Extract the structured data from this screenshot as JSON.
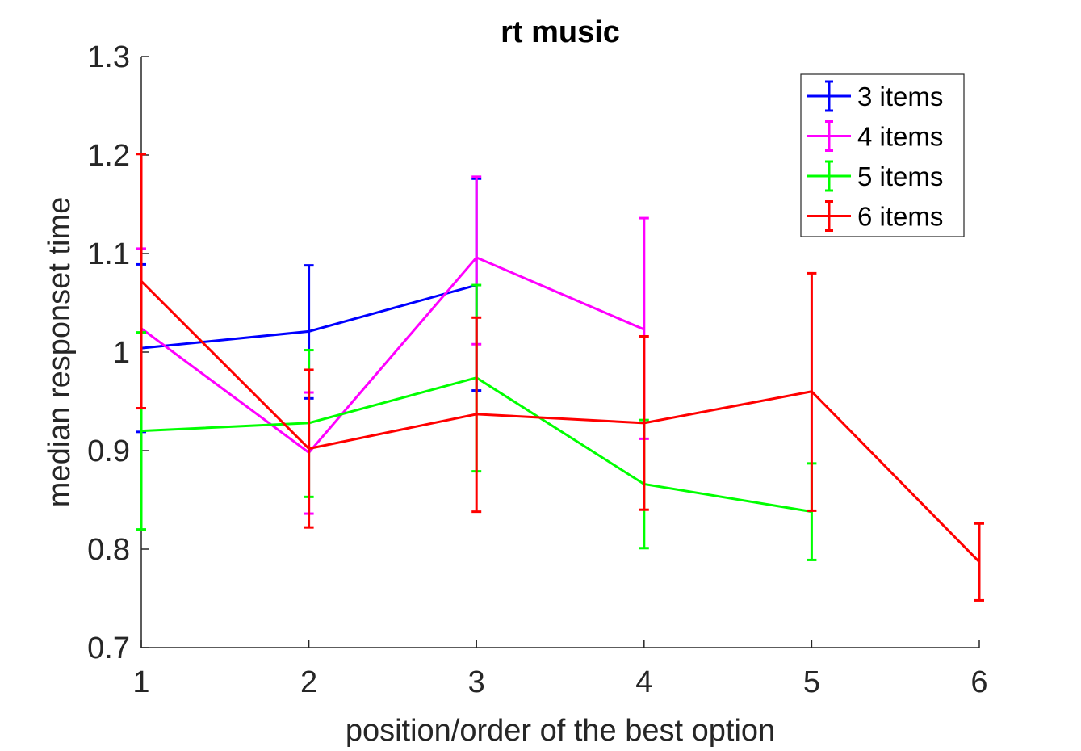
{
  "chart_data": {
    "type": "line",
    "title": "rt music",
    "xlabel": "position/order of the best option",
    "ylabel": "median responset time",
    "xlim": [
      1,
      6
    ],
    "ylim": [
      0.7,
      1.3
    ],
    "xticks": [
      "1",
      "2",
      "3",
      "4",
      "5",
      "6"
    ],
    "yticks": [
      "0.7",
      "0.8",
      "0.9",
      "1",
      "1.1",
      "1.2",
      "1.3"
    ],
    "legend_position": "top-right",
    "grid": false,
    "series": [
      {
        "name": "3 items",
        "color": "#0000ff",
        "x": [
          1,
          2,
          3
        ],
        "y": [
          1.004,
          1.021,
          1.068
        ],
        "lower": [
          0.919,
          0.953,
          0.961
        ],
        "upper": [
          1.089,
          1.088,
          1.176
        ]
      },
      {
        "name": "4 items",
        "color": "#ff00ff",
        "x": [
          1,
          2,
          3,
          4
        ],
        "y": [
          1.024,
          0.898,
          1.096,
          1.023
        ],
        "lower": [
          0.943,
          0.836,
          1.008,
          0.912
        ],
        "upper": [
          1.105,
          0.959,
          1.178,
          1.136
        ]
      },
      {
        "name": "5 items",
        "color": "#00ff00",
        "x": [
          1,
          2,
          3,
          4,
          5
        ],
        "y": [
          0.92,
          0.928,
          0.974,
          0.866,
          0.838
        ],
        "lower": [
          0.82,
          0.853,
          0.879,
          0.801,
          0.789
        ],
        "upper": [
          1.02,
          1.002,
          1.068,
          0.931,
          0.887
        ]
      },
      {
        "name": "6 items",
        "color": "#ff0000",
        "x": [
          1,
          2,
          3,
          4,
          5,
          6
        ],
        "y": [
          1.072,
          0.902,
          0.937,
          0.928,
          0.96,
          0.787
        ],
        "lower": [
          0.943,
          0.822,
          0.838,
          0.84,
          0.839,
          0.748
        ],
        "upper": [
          1.201,
          0.982,
          1.035,
          1.016,
          1.08,
          0.826
        ]
      }
    ]
  }
}
